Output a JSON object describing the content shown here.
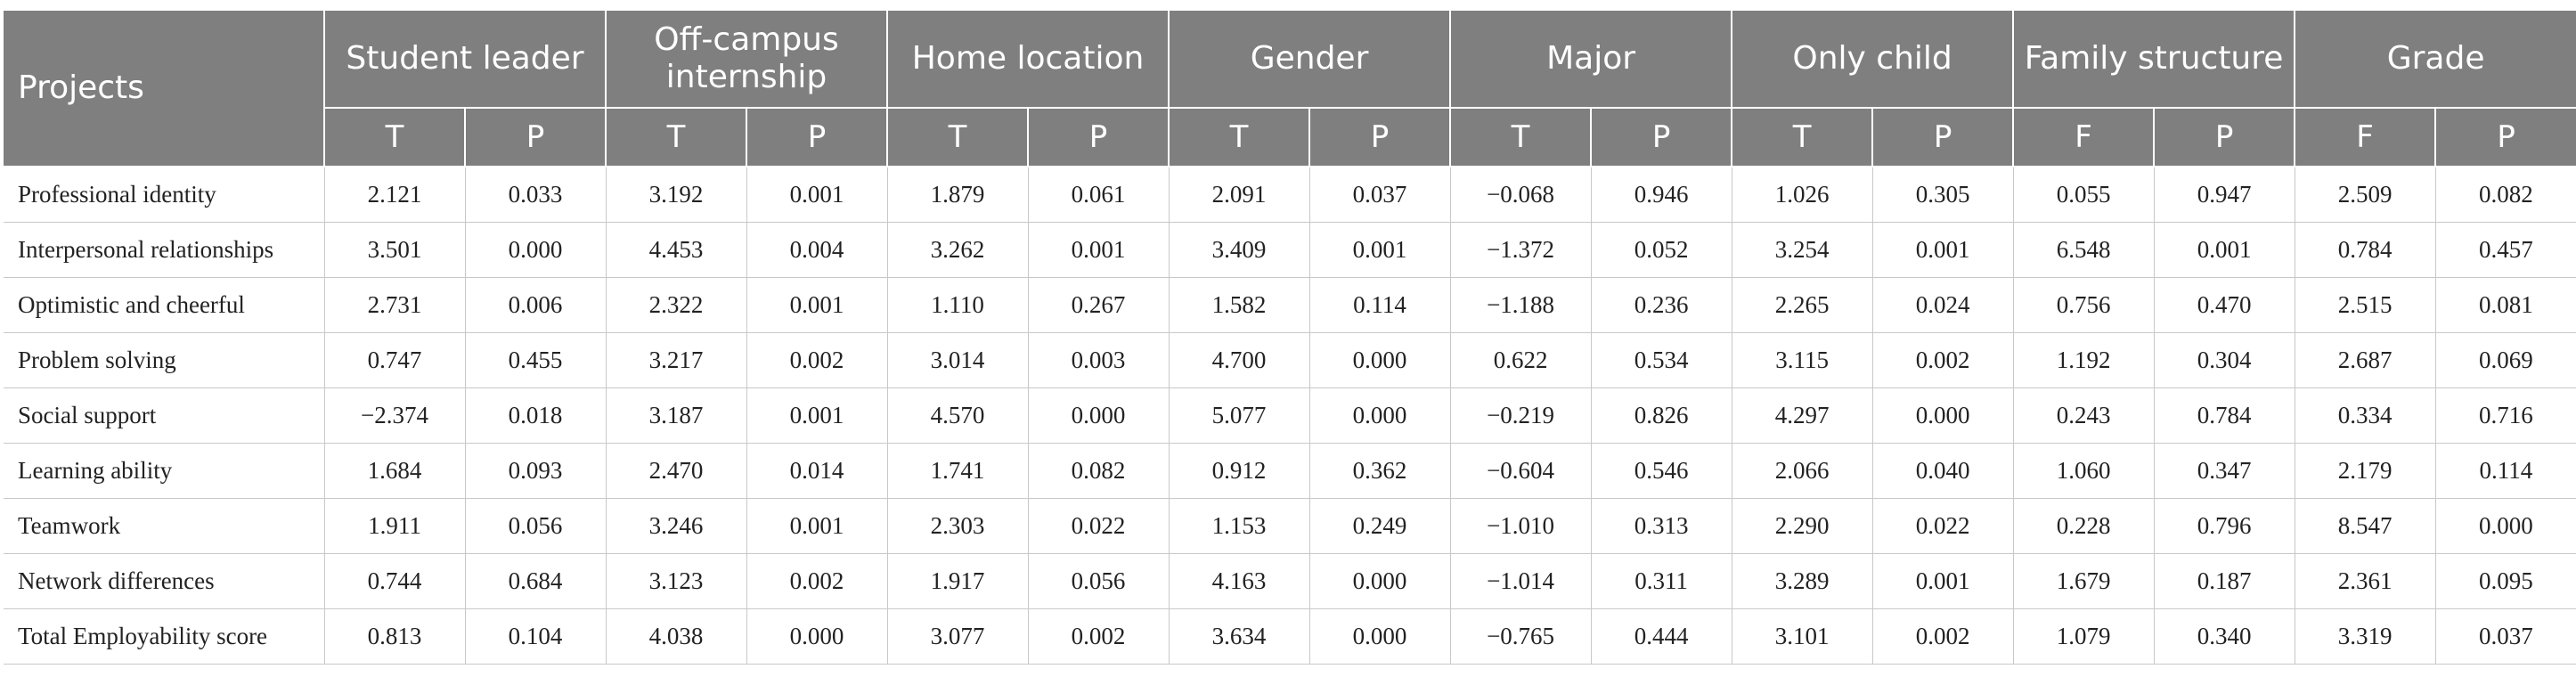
{
  "table": {
    "projects_label": "Projects",
    "groups": [
      {
        "label": "Student leader",
        "stats": [
          "T",
          "P"
        ]
      },
      {
        "label": "Off-campus internship",
        "stats": [
          "T",
          "P"
        ]
      },
      {
        "label": "Home location",
        "stats": [
          "T",
          "P"
        ]
      },
      {
        "label": "Gender",
        "stats": [
          "T",
          "P"
        ]
      },
      {
        "label": "Major",
        "stats": [
          "T",
          "P"
        ]
      },
      {
        "label": "Only child",
        "stats": [
          "T",
          "P"
        ]
      },
      {
        "label": "Family structure",
        "stats": [
          "F",
          "P"
        ]
      },
      {
        "label": "Grade",
        "stats": [
          "F",
          "P"
        ]
      }
    ],
    "rows": [
      {
        "label": "Professional identity",
        "values": [
          "2.121",
          "0.033",
          "3.192",
          "0.001",
          "1.879",
          "0.061",
          "2.091",
          "0.037",
          "−0.068",
          "0.946",
          "1.026",
          "0.305",
          "0.055",
          "0.947",
          "2.509",
          "0.082"
        ]
      },
      {
        "label": "Interpersonal relationships",
        "values": [
          "3.501",
          "0.000",
          "4.453",
          "0.004",
          "3.262",
          "0.001",
          "3.409",
          "0.001",
          "−1.372",
          "0.052",
          "3.254",
          "0.001",
          "6.548",
          "0.001",
          "0.784",
          "0.457"
        ]
      },
      {
        "label": "Optimistic and cheerful",
        "values": [
          "2.731",
          "0.006",
          "2.322",
          "0.001",
          "1.110",
          "0.267",
          "1.582",
          "0.114",
          "−1.188",
          "0.236",
          "2.265",
          "0.024",
          "0.756",
          "0.470",
          "2.515",
          "0.081"
        ]
      },
      {
        "label": "Problem solving",
        "values": [
          "0.747",
          "0.455",
          "3.217",
          "0.002",
          "3.014",
          "0.003",
          "4.700",
          "0.000",
          "0.622",
          "0.534",
          "3.115",
          "0.002",
          "1.192",
          "0.304",
          "2.687",
          "0.069"
        ]
      },
      {
        "label": "Social support",
        "values": [
          "−2.374",
          "0.018",
          "3.187",
          "0.001",
          "4.570",
          "0.000",
          "5.077",
          "0.000",
          "−0.219",
          "0.826",
          "4.297",
          "0.000",
          "0.243",
          "0.784",
          "0.334",
          "0.716"
        ]
      },
      {
        "label": "Learning ability",
        "values": [
          "1.684",
          "0.093",
          "2.470",
          "0.014",
          "1.741",
          "0.082",
          "0.912",
          "0.362",
          "−0.604",
          "0.546",
          "2.066",
          "0.040",
          "1.060",
          "0.347",
          "2.179",
          "0.114"
        ]
      },
      {
        "label": "Teamwork",
        "values": [
          "1.911",
          "0.056",
          "3.246",
          "0.001",
          "2.303",
          "0.022",
          "1.153",
          "0.249",
          "−1.010",
          "0.313",
          "2.290",
          "0.022",
          "0.228",
          "0.796",
          "8.547",
          "0.000"
        ]
      },
      {
        "label": "Network differences",
        "values": [
          "0.744",
          "0.684",
          "3.123",
          "0.002",
          "1.917",
          "0.056",
          "4.163",
          "0.000",
          "−1.014",
          "0.311",
          "3.289",
          "0.001",
          "1.679",
          "0.187",
          "2.361",
          "0.095"
        ]
      },
      {
        "label": "Total Employability score",
        "values": [
          "0.813",
          "0.104",
          "4.038",
          "0.000",
          "3.077",
          "0.002",
          "3.634",
          "0.000",
          "−0.765",
          "0.444",
          "3.101",
          "0.002",
          "1.079",
          "0.340",
          "3.319",
          "0.037"
        ]
      }
    ]
  }
}
